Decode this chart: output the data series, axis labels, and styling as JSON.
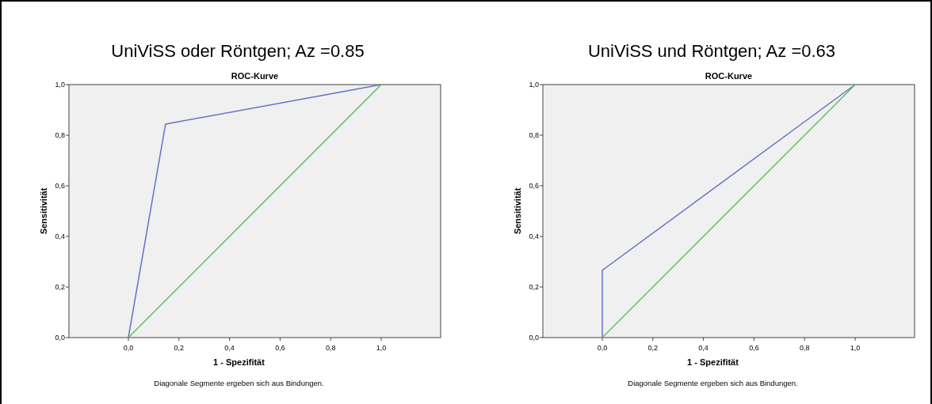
{
  "chart_data": [
    {
      "type": "line",
      "title": "UniViSS oder Röntgen; Az =0.85",
      "subtitle": "ROC-Kurve",
      "xlabel": "1 - Spezifität",
      "ylabel": "Sensitivität",
      "annotations": [
        "Diagonale Segmente ergeben sich aus Bindungen."
      ],
      "xlim": [
        -0.235,
        1.235
      ],
      "ylim": [
        0,
        1
      ],
      "xticks": [
        {
          "value": 0,
          "label": "0,0"
        },
        {
          "value": 0.2,
          "label": "0,2"
        },
        {
          "value": 0.4,
          "label": "0,4"
        },
        {
          "value": 0.6,
          "label": "0,6"
        },
        {
          "value": 0.8,
          "label": "0,8"
        },
        {
          "value": 1,
          "label": "1,0"
        }
      ],
      "yticks": [
        {
          "value": 0,
          "label": "0,0"
        },
        {
          "value": 0.2,
          "label": "0,2"
        },
        {
          "value": 0.4,
          "label": "0,4"
        },
        {
          "value": 0.6,
          "label": "0,6"
        },
        {
          "value": 0.8,
          "label": "0,8"
        },
        {
          "value": 1,
          "label": "1,0"
        }
      ],
      "line_style": "solid",
      "series": [
        {
          "color": "#6673c4",
          "x": [
            0,
            0.147,
            1
          ],
          "values": [
            0,
            0.844,
            1
          ]
        },
        {
          "color": "#5cc05c",
          "x": [
            0,
            1
          ],
          "values": [
            0,
            1
          ]
        }
      ]
    },
    {
      "type": "line",
      "title": "UniViSS und Röntgen; Az =0.63",
      "subtitle": "ROC-Kurve",
      "xlabel": "1 - Spezifität",
      "ylabel": "Sensitivität",
      "annotations": [
        "Diagonale Segmente ergeben sich aus Bindungen."
      ],
      "xlim": [
        -0.235,
        1.235
      ],
      "ylim": [
        0,
        1
      ],
      "xticks": [
        {
          "value": 0,
          "label": "0,0"
        },
        {
          "value": 0.2,
          "label": "0,2"
        },
        {
          "value": 0.4,
          "label": "0,4"
        },
        {
          "value": 0.6,
          "label": "0,6"
        },
        {
          "value": 0.8,
          "label": "0,8"
        },
        {
          "value": 1,
          "label": "1,0"
        }
      ],
      "yticks": [
        {
          "value": 0,
          "label": "0,0"
        },
        {
          "value": 0.2,
          "label": "0,2"
        },
        {
          "value": 0.4,
          "label": "0,4"
        },
        {
          "value": 0.6,
          "label": "0,6"
        },
        {
          "value": 0.8,
          "label": "0,8"
        },
        {
          "value": 1,
          "label": "1,0"
        }
      ],
      "line_style": "solid",
      "series": [
        {
          "color": "#6673c4",
          "x": [
            0,
            0,
            1
          ],
          "values": [
            0,
            0.266,
            1
          ]
        },
        {
          "color": "#5cc05c",
          "x": [
            0,
            1
          ],
          "values": [
            0,
            1
          ]
        }
      ]
    }
  ]
}
